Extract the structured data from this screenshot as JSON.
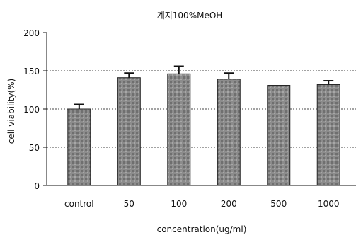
{
  "chart_data": {
    "type": "bar",
    "title": "계지100%MeOH",
    "xlabel": "concentration(ug/ml)",
    "ylabel": "cell viability(%)",
    "categories": [
      "control",
      "50",
      "100",
      "200",
      "500",
      "1000"
    ],
    "values": [
      100,
      141,
      146,
      139,
      131,
      132
    ],
    "errors": [
      6,
      6,
      10,
      8,
      0,
      5
    ],
    "ylim": [
      0,
      200
    ],
    "yticks": [
      0,
      50,
      100,
      150,
      200
    ],
    "grid": "horizontal-dashed",
    "legend": "none",
    "bar_color": "#8c8c8c"
  }
}
